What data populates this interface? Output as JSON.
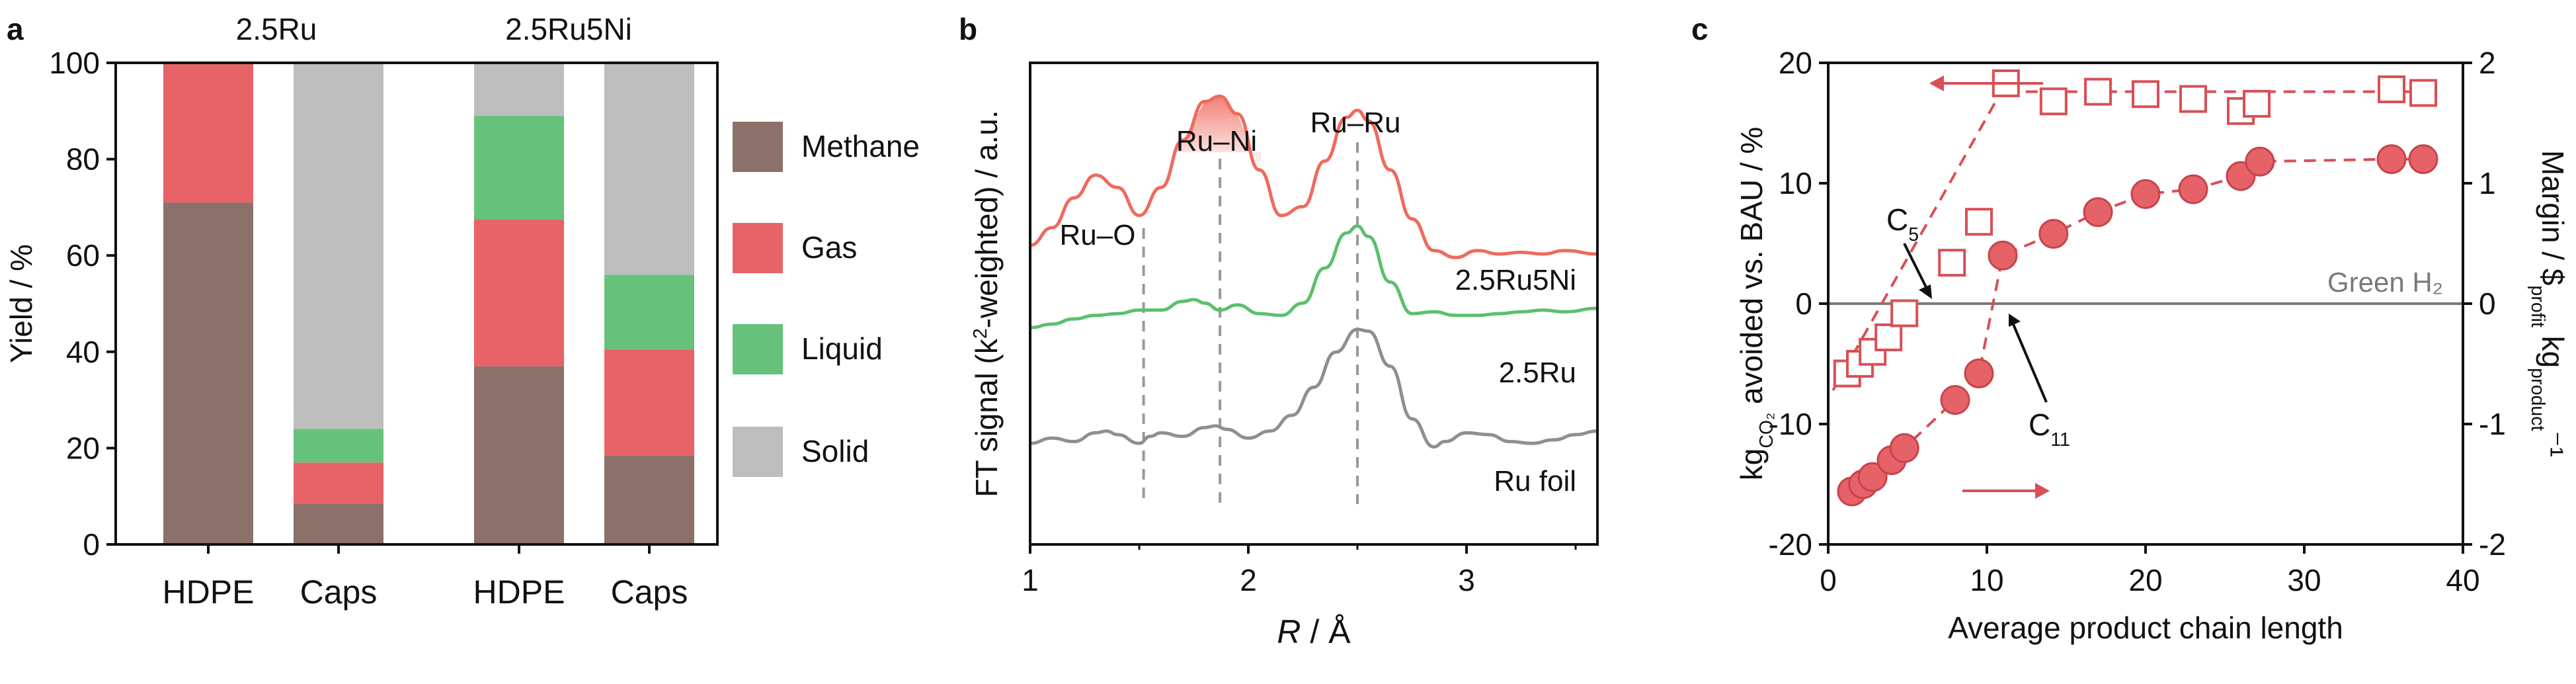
{
  "colors": {
    "methane": "#8b716a",
    "gas": "#e86367",
    "liquid": "#66c27a",
    "solid": "#bdbdbd",
    "red_series": "#d94f56",
    "red_curve": "#ef6a5d",
    "green_curve": "#5cbf6e",
    "gray_curve": "#8f8f8f",
    "green_h2_line": "#7a7a7a"
  },
  "chart_data": [
    {
      "panel_label": "a",
      "type": "bar",
      "stacked": true,
      "group_labels": [
        "2.5Ru",
        "2.5Ru5Ni"
      ],
      "categories": [
        "HDPE",
        "Caps",
        "HDPE",
        "Caps"
      ],
      "ylabel": "Yield / %",
      "ylim": [
        0,
        100
      ],
      "yticks": [
        0,
        20,
        40,
        60,
        80,
        100
      ],
      "series": [
        {
          "name": "Methane",
          "values": [
            71,
            8.5,
            37,
            18.5
          ]
        },
        {
          "name": "Gas",
          "values": [
            29,
            8.5,
            30.5,
            22
          ]
        },
        {
          "name": "Liquid",
          "values": [
            0,
            7,
            21.5,
            15.5
          ]
        },
        {
          "name": "Solid",
          "values": [
            0,
            76,
            11,
            44
          ]
        }
      ],
      "legend_position": "right"
    },
    {
      "panel_label": "b",
      "type": "line",
      "xlabel": "R / Å",
      "ylabel": "FT signal (k²-weighted) / a.u.",
      "xlim": [
        1,
        3.6
      ],
      "xticks": [
        1,
        2,
        3
      ],
      "series": [
        {
          "name": "2.5Ru5Ni",
          "x": [
            1.0,
            1.1,
            1.2,
            1.3,
            1.4,
            1.5,
            1.6,
            1.7,
            1.8,
            1.87,
            1.95,
            2.05,
            2.15,
            2.25,
            2.35,
            2.45,
            2.5,
            2.55,
            2.65,
            2.75,
            2.85,
            2.95,
            3.05,
            3.15,
            3.25,
            3.35,
            3.45,
            3.6
          ],
          "y": [
            0.45,
            0.55,
            0.72,
            0.85,
            0.78,
            0.62,
            0.78,
            1.05,
            1.27,
            1.3,
            1.2,
            0.88,
            0.62,
            0.67,
            0.93,
            1.18,
            1.22,
            1.16,
            0.88,
            0.6,
            0.42,
            0.38,
            0.42,
            0.4,
            0.41,
            0.4,
            0.42,
            0.4
          ]
        },
        {
          "name": "2.5Ru",
          "x": [
            1.0,
            1.1,
            1.2,
            1.3,
            1.4,
            1.5,
            1.6,
            1.7,
            1.75,
            1.8,
            1.87,
            1.95,
            2.05,
            2.15,
            2.25,
            2.35,
            2.45,
            2.5,
            2.55,
            2.65,
            2.75,
            2.85,
            2.95,
            3.05,
            3.15,
            3.25,
            3.35,
            3.45,
            3.6
          ],
          "y": [
            -0.02,
            0.0,
            0.03,
            0.05,
            0.06,
            0.08,
            0.08,
            0.13,
            0.14,
            0.12,
            0.08,
            0.11,
            0.06,
            0.05,
            0.12,
            0.32,
            0.52,
            0.56,
            0.5,
            0.24,
            0.06,
            0.07,
            0.05,
            0.05,
            0.06,
            0.07,
            0.08,
            0.07,
            0.09
          ]
        },
        {
          "name": "Ru foil",
          "x": [
            1.0,
            1.1,
            1.2,
            1.3,
            1.35,
            1.4,
            1.5,
            1.55,
            1.6,
            1.7,
            1.8,
            1.85,
            1.9,
            2.0,
            2.1,
            2.2,
            2.3,
            2.4,
            2.5,
            2.55,
            2.65,
            2.75,
            2.85,
            2.9,
            3.0,
            3.1,
            3.2,
            3.3,
            3.4,
            3.5,
            3.6
          ],
          "y": [
            -0.68,
            -0.65,
            -0.67,
            -0.62,
            -0.61,
            -0.63,
            -0.68,
            -0.64,
            -0.62,
            -0.64,
            -0.59,
            -0.58,
            -0.6,
            -0.65,
            -0.61,
            -0.52,
            -0.36,
            -0.16,
            -0.03,
            -0.04,
            -0.24,
            -0.54,
            -0.7,
            -0.67,
            -0.62,
            -0.63,
            -0.67,
            -0.68,
            -0.66,
            -0.63,
            -0.61
          ]
        }
      ],
      "peak_annotations": [
        {
          "label": "Ru–O",
          "x": 1.52
        },
        {
          "label": "Ru–Ni",
          "x": 1.87
        },
        {
          "label": "Ru–Ru",
          "x": 2.5
        }
      ]
    },
    {
      "panel_label": "c",
      "type": "scatter",
      "xlabel": "Average product chain length",
      "ylabel_left": "kgCO₂ avoided vs. BAU / %",
      "ylabel_right": "Margin / $profit kgproduct⁻¹",
      "xlim": [
        0,
        40
      ],
      "xticks": [
        0,
        10,
        20,
        30,
        40
      ],
      "ylim_left": [
        -20,
        20
      ],
      "yticks_left": [
        -20,
        -10,
        0,
        10,
        20
      ],
      "ylim_right": [
        -2,
        2
      ],
      "yticks_right": [
        -2,
        -1,
        0,
        1,
        2
      ],
      "reference_line": {
        "label": "Green H₂",
        "y_left": 0
      },
      "series": [
        {
          "axis": "left",
          "marker": "open-square",
          "x": [
            1.2,
            2.0,
            2.8,
            3.8,
            4.8,
            7.8,
            9.5,
            11.2,
            14.2,
            17.0,
            20.0,
            23.0,
            26.0,
            27.0,
            35.5,
            37.5
          ],
          "y": [
            -5.8,
            -5.0,
            -4.0,
            -2.8,
            -0.8,
            3.4,
            6.8,
            18.3,
            16.8,
            17.6,
            17.4,
            17.0,
            16.0,
            16.6,
            17.8,
            17.5
          ]
        },
        {
          "axis": "right",
          "marker": "filled-circle",
          "x": [
            1.5,
            2.2,
            2.8,
            4.0,
            4.8,
            8.0,
            9.5,
            11.0,
            14.2,
            17.0,
            20.0,
            23.0,
            26.0,
            27.2,
            35.5,
            37.5
          ],
          "y": [
            -1.56,
            -1.5,
            -1.44,
            -1.3,
            -1.2,
            -0.8,
            -0.58,
            0.4,
            0.58,
            0.76,
            0.91,
            0.95,
            1.06,
            1.18,
            1.2,
            1.2
          ]
        }
      ],
      "annotations": [
        {
          "label": "C",
          "subscript": "5"
        },
        {
          "label": "C",
          "subscript": "11"
        }
      ]
    }
  ]
}
